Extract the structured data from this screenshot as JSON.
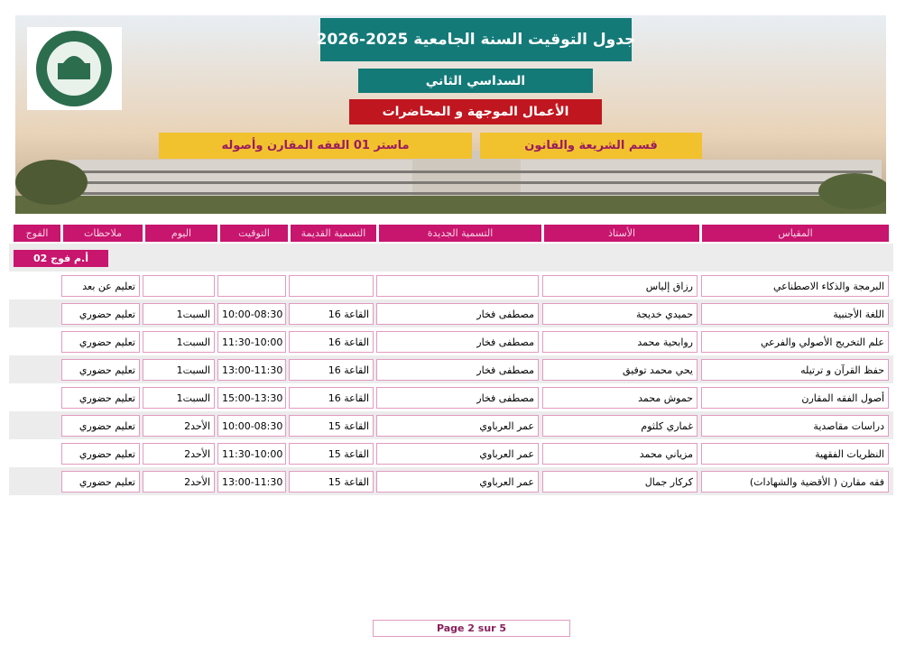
{
  "header": {
    "title": "جدول التوقيت السنة الجامعية 2025-2026",
    "semester": "السداسي الثاني",
    "session_type": "الأعمال الموجهة و المحاضرات",
    "program": "ماستر 01 الفقه المقارن وأصوله",
    "department": "قسم الشريعة والقانون"
  },
  "table": {
    "columns": [
      "المقياس",
      "الأستاذ",
      "التسمية الجديدة",
      "التسمية القديمة",
      "التوقيت",
      "اليوم",
      "ملاحظات",
      "الفوج"
    ],
    "group": "أ.م فوج 02",
    "rows": [
      {
        "module": "البرمجة والذكاء الاصطناعي",
        "teacher": "رزاق إلياس",
        "note": "تعليم عن بعد"
      },
      {
        "module": "اللغة الأجنبية",
        "teacher": "حميدي خديجة",
        "new_name": "مصطفى فخار",
        "old_name": "القاعة 16",
        "time": "10:00-08:30",
        "day": "السبت1",
        "note": "تعليم حضوري"
      },
      {
        "module": "علم التخريج الأصولي والفرعي",
        "teacher": "روابحية  محمد",
        "new_name": "مصطفى فخار",
        "old_name": "القاعة 16",
        "time": "11:30-10:00",
        "day": "السبت1",
        "note": "تعليم حضوري"
      },
      {
        "module": "حفظ القرآن و ترتيله",
        "teacher": "يحي محمد توفيق",
        "new_name": "مصطفى فخار",
        "old_name": "القاعة 16",
        "time": "13:00-11:30",
        "day": "السبت1",
        "note": "تعليم حضوري"
      },
      {
        "module": "أصول الفقه المقارن",
        "teacher": "حموش محمد",
        "new_name": "مصطفى فخار",
        "old_name": "القاعة 16",
        "time": "15:00-13:30",
        "day": "السبت1",
        "note": "تعليم حضوري"
      },
      {
        "module": "دراسات مقاصدية",
        "teacher": "غماري كلثوم",
        "new_name": "عمر العرباوي",
        "old_name": "القاعة 15",
        "time": "10:00-08:30",
        "day": "الأحد2",
        "note": "تعليم حضوري"
      },
      {
        "module": "النظريات الفقهية",
        "teacher": "مزياني محمد",
        "new_name": "عمر العرباوي",
        "old_name": "القاعة 15",
        "time": "11:30-10:00",
        "day": "الأحد2",
        "note": "تعليم حضوري"
      },
      {
        "module": "فقه مقارن ( الأقضية والشهادات)",
        "teacher": "كركار جمال",
        "new_name": "عمر العرباوي",
        "old_name": "القاعة 15",
        "time": "13:00-11:30",
        "day": "الأحد2",
        "note": "تعليم حضوري"
      }
    ]
  },
  "footer": {
    "page": "Page 2 sur 5"
  }
}
